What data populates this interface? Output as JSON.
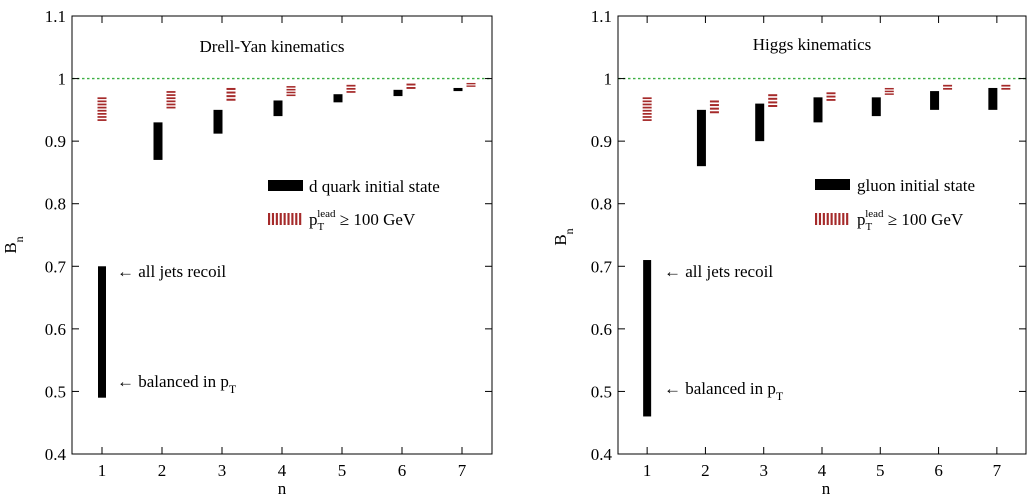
{
  "colors": {
    "range_bar": "#000000",
    "lead_bar": "#a52a2a",
    "reference_line": "#3cb043"
  },
  "chart_data": [
    {
      "type": "range-bar",
      "title": "Drell-Yan kinematics",
      "xlabel": "n",
      "ylabel": "B_n",
      "xlim": [
        0.5,
        7.5
      ],
      "ylim": [
        0.4,
        1.1
      ],
      "xticks": [
        1,
        2,
        3,
        4,
        5,
        6,
        7
      ],
      "yticks": [
        0.4,
        0.5,
        0.6,
        0.7,
        0.8,
        0.9,
        1,
        1.1
      ],
      "ytick_labels": [
        "0.4",
        "0.5",
        "0.6",
        "0.7",
        "0.8",
        "0.9",
        "1",
        "1.1"
      ],
      "reference_line": 1.0,
      "series": [
        {
          "name": "d quark initial state",
          "style": "solid",
          "x": [
            2,
            3,
            4,
            5,
            6,
            7
          ],
          "low": [
            0.87,
            0.912,
            0.94,
            0.962,
            0.972,
            0.98
          ],
          "high": [
            0.93,
            0.95,
            0.965,
            0.975,
            0.982,
            0.985
          ]
        },
        {
          "name": "p_T^lead ≥ 100 GeV",
          "style": "striped",
          "x": [
            1,
            2,
            3,
            4,
            5,
            6,
            7
          ],
          "low": [
            0.93,
            0.95,
            0.962,
            0.97,
            0.975,
            0.981,
            0.985
          ],
          "high": [
            0.97,
            0.98,
            0.985,
            0.988,
            0.99,
            0.992,
            0.993
          ]
        }
      ],
      "bracket": {
        "x": 1,
        "low": 0.49,
        "high": 0.7
      },
      "annotations": {
        "top": "← all jets recoil",
        "bottom_prefix": "← balanced in p",
        "bottom_sub": "T"
      }
    },
    {
      "type": "range-bar",
      "title": "Higgs kinematics",
      "xlabel": "n",
      "ylabel": "B_n",
      "xlim": [
        0.5,
        7.5
      ],
      "ylim": [
        0.4,
        1.1
      ],
      "xticks": [
        1,
        2,
        3,
        4,
        5,
        6,
        7
      ],
      "yticks": [
        0.4,
        0.5,
        0.6,
        0.7,
        0.8,
        0.9,
        1,
        1.1
      ],
      "ytick_labels": [
        "0.4",
        "0.5",
        "0.6",
        "0.7",
        "0.8",
        "0.9",
        "1",
        "1.1"
      ],
      "reference_line": 1.0,
      "series": [
        {
          "name": "gluon initial state",
          "style": "solid",
          "x": [
            2,
            3,
            4,
            5,
            6,
            7
          ],
          "low": [
            0.86,
            0.9,
            0.93,
            0.94,
            0.95,
            0.95
          ],
          "high": [
            0.95,
            0.96,
            0.97,
            0.97,
            0.98,
            0.985
          ]
        },
        {
          "name": "p_T^lead ≥ 100 GeV",
          "style": "striped",
          "x": [
            1,
            2,
            3,
            4,
            5,
            6,
            7
          ],
          "low": [
            0.93,
            0.942,
            0.952,
            0.962,
            0.972,
            0.98,
            0.98
          ],
          "high": [
            0.97,
            0.965,
            0.975,
            0.978,
            0.985,
            0.99,
            0.99
          ]
        }
      ],
      "bracket": {
        "x": 1,
        "low": 0.46,
        "high": 0.71
      },
      "annotations": {
        "top": "← all jets recoil",
        "bottom_prefix": "← balanced in p",
        "bottom_sub": "T"
      }
    }
  ],
  "labels": {
    "ylabel_main": "B",
    "ylabel_sub": "n",
    "legend_lead_p": "p",
    "legend_lead_sub": "T",
    "legend_lead_sup": "lead",
    "legend_lead_rest": " ≥ 100 GeV"
  }
}
